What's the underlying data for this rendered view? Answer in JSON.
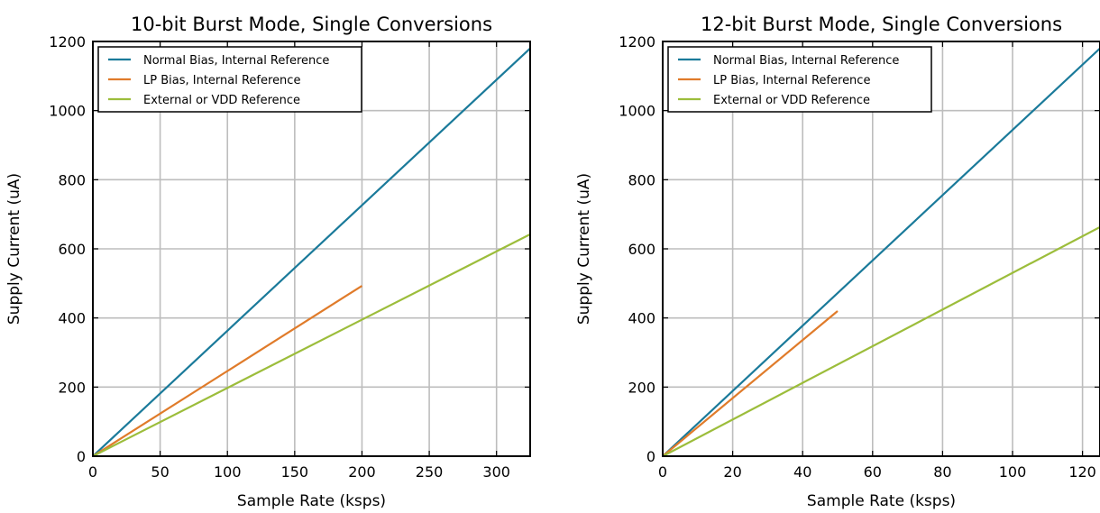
{
  "chart_data": [
    {
      "type": "line",
      "title": "10-bit Burst Mode, Single Conversions",
      "xlabel": "Sample Rate (ksps)",
      "ylabel": "Supply Current (uA)",
      "xlim": [
        0,
        325
      ],
      "ylim": [
        0,
        1200
      ],
      "xticks": [
        0,
        50,
        100,
        150,
        200,
        250,
        300
      ],
      "yticks": [
        0,
        200,
        400,
        600,
        800,
        1000,
        1200
      ],
      "grid": true,
      "legend_position": "top-left",
      "series": [
        {
          "name": "Normal Bias, Internal Reference",
          "color": "#1a7a9a",
          "x": [
            0,
            325
          ],
          "y": [
            0,
            1180
          ]
        },
        {
          "name": "LP Bias, Internal Reference",
          "color": "#e07b2a",
          "x": [
            0,
            200
          ],
          "y": [
            0,
            493
          ]
        },
        {
          "name": "External or VDD Reference",
          "color": "#9cbd3b",
          "x": [
            0,
            325
          ],
          "y": [
            0,
            642
          ]
        }
      ]
    },
    {
      "type": "line",
      "title": "12-bit Burst Mode, Single Conversions",
      "xlabel": "Sample Rate (ksps)",
      "ylabel": "Supply Current (uA)",
      "xlim": [
        0,
        125
      ],
      "ylim": [
        0,
        1200
      ],
      "xticks": [
        0,
        20,
        40,
        60,
        80,
        100,
        120
      ],
      "yticks": [
        0,
        200,
        400,
        600,
        800,
        1000,
        1200
      ],
      "grid": true,
      "legend_position": "top-left",
      "series": [
        {
          "name": "Normal Bias, Internal Reference",
          "color": "#1a7a9a",
          "x": [
            0,
            125
          ],
          "y": [
            0,
            1180
          ]
        },
        {
          "name": "LP Bias, Internal Reference",
          "color": "#e07b2a",
          "x": [
            0,
            50
          ],
          "y": [
            0,
            420
          ]
        },
        {
          "name": "External or VDD Reference",
          "color": "#9cbd3b",
          "x": [
            0,
            125
          ],
          "y": [
            0,
            663
          ]
        }
      ]
    }
  ]
}
